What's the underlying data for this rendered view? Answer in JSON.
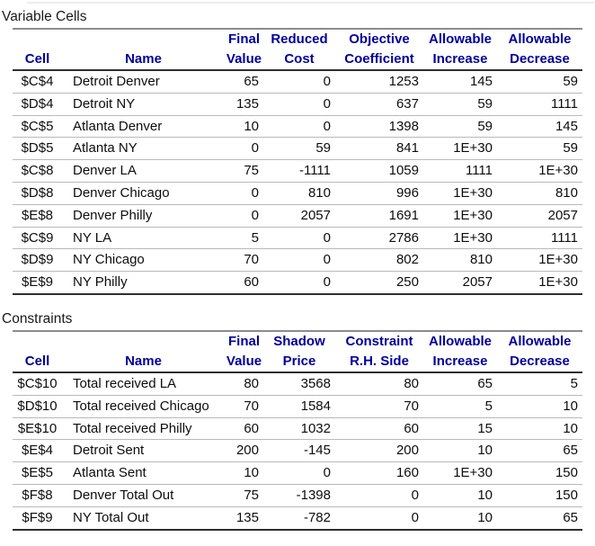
{
  "colors": {
    "header_text": "#00009a",
    "title_text": "#1a1a1a",
    "title_rule": "#8c8c8c",
    "dark_rule": "#2e2e2e",
    "row_separator": "#b9b9b9",
    "background": "#ffffff"
  },
  "variable_table": {
    "title": "Variable Cells",
    "headers": [
      {
        "key": "cell-ref",
        "top": "",
        "bottom": "Cell"
      },
      {
        "key": "name",
        "top": "",
        "bottom": "Name"
      },
      {
        "key": "final-value",
        "top": "Final",
        "bottom": "Value"
      },
      {
        "key": "reduced-cost",
        "top": "Reduced",
        "bottom": "Cost"
      },
      {
        "key": "objective-coefficient",
        "top": "Objective",
        "bottom": "Coefficient"
      },
      {
        "key": "allowable-increase",
        "top": "Allowable",
        "bottom": "Increase"
      },
      {
        "key": "allowable-decrease",
        "top": "Allowable",
        "bottom": "Decrease"
      }
    ],
    "rows": [
      [
        "$C$4",
        "Detroit Denver",
        "65",
        "0",
        "1253",
        "145",
        "59"
      ],
      [
        "$D$4",
        "Detroit NY",
        "135",
        "0",
        "637",
        "59",
        "1111"
      ],
      [
        "$C$5",
        "Atlanta Denver",
        "10",
        "0",
        "1398",
        "59",
        "145"
      ],
      [
        "$D$5",
        "Atlanta NY",
        "0",
        "59",
        "841",
        "1E+30",
        "59"
      ],
      [
        "$C$8",
        "Denver LA",
        "75",
        "-1111",
        "1059",
        "1111",
        "1E+30"
      ],
      [
        "$D$8",
        "Denver Chicago",
        "0",
        "810",
        "996",
        "1E+30",
        "810"
      ],
      [
        "$E$8",
        "Denver Philly",
        "0",
        "2057",
        "1691",
        "1E+30",
        "2057"
      ],
      [
        "$C$9",
        "NY LA",
        "5",
        "0",
        "2786",
        "1E+30",
        "1111"
      ],
      [
        "$D$9",
        "NY Chicago",
        "70",
        "0",
        "802",
        "810",
        "1E+30"
      ],
      [
        "$E$9",
        "NY Philly",
        "60",
        "0",
        "250",
        "2057",
        "1E+30"
      ]
    ]
  },
  "constraints_table": {
    "title": "Constraints",
    "headers": [
      {
        "key": "cell-ref",
        "top": "",
        "bottom": "Cell"
      },
      {
        "key": "name",
        "top": "",
        "bottom": "Name"
      },
      {
        "key": "final-value",
        "top": "Final",
        "bottom": "Value"
      },
      {
        "key": "shadow-price",
        "top": "Shadow",
        "bottom": "Price"
      },
      {
        "key": "constraint-rhs",
        "top": "Constraint",
        "bottom": "R.H. Side"
      },
      {
        "key": "allowable-increase",
        "top": "Allowable",
        "bottom": "Increase"
      },
      {
        "key": "allowable-decrease",
        "top": "Allowable",
        "bottom": "Decrease"
      }
    ],
    "rows": [
      [
        "$C$10",
        "Total received LA",
        "80",
        "3568",
        "80",
        "65",
        "5"
      ],
      [
        "$D$10",
        "Total received Chicago",
        "70",
        "1584",
        "70",
        "5",
        "10"
      ],
      [
        "$E$10",
        "Total received Philly",
        "60",
        "1032",
        "60",
        "15",
        "10"
      ],
      [
        "$E$4",
        "Detroit Sent",
        "200",
        "-145",
        "200",
        "10",
        "65"
      ],
      [
        "$E$5",
        "Atlanta Sent",
        "10",
        "0",
        "160",
        "1E+30",
        "150"
      ],
      [
        "$F$8",
        "Denver Total Out",
        "75",
        "-1398",
        "0",
        "10",
        "150"
      ],
      [
        "$F$9",
        "NY Total Out",
        "135",
        "-782",
        "0",
        "10",
        "65"
      ]
    ]
  }
}
